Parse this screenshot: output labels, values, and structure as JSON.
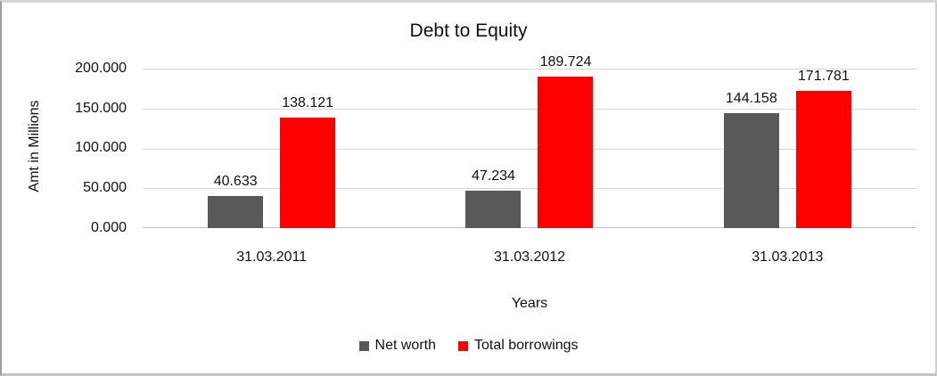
{
  "chart_data": {
    "type": "bar",
    "title": "Debt to Equity",
    "xlabel": "Years",
    "ylabel": "Amt in Millions",
    "categories": [
      "31.03.2011",
      "31.03.2012",
      "31.03.2013"
    ],
    "series": [
      {
        "name": "Net worth",
        "color": "#595959",
        "values": [
          40.633,
          47.234,
          144.158
        ],
        "labels": [
          "40.633",
          "47.234",
          "144.158"
        ]
      },
      {
        "name": "Total borrowings",
        "color": "#ff0000",
        "values": [
          138.121,
          189.724,
          171.781
        ],
        "labels": [
          "138.121",
          "189.724",
          "171.781"
        ]
      }
    ],
    "ylim": [
      0,
      200
    ],
    "yticks_top_to_bottom": [
      "200.000",
      "150.000",
      "100.000",
      "50.000",
      "0.000"
    ],
    "grid": true,
    "gridline_color": "#d9d9d9",
    "legend_position": "bottom"
  }
}
